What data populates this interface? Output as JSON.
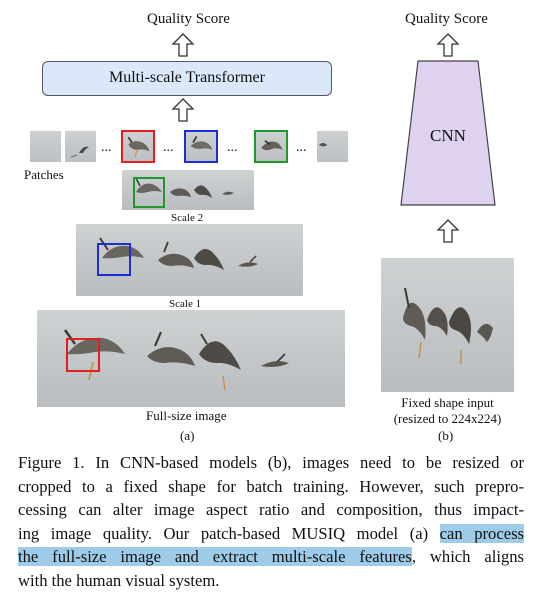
{
  "figure_a": {
    "output_label": "Quality Score",
    "transformer_label": "Multi-scale Transformer",
    "patches_label": "Patches",
    "ellipsis": "...",
    "scale2_label": "Scale 2",
    "scale1_label": "Scale 1",
    "fullsize_label": "Full-size image",
    "panel_label": "(a)"
  },
  "figure_b": {
    "output_label": "Quality Score",
    "cnn_label": "CNN",
    "input_label_line1": "Fixed shape input",
    "input_label_line2": "(resized to 224x224)",
    "panel_label": "(b)"
  },
  "colors": {
    "transformer_fill": "#dbe8fa",
    "cnn_fill": "#ded2f0",
    "box_red": "#e0201c",
    "box_blue": "#1a2fd6",
    "box_green": "#1f9a2a",
    "highlight": "#9ecbe8"
  },
  "caption": {
    "line1": "Figure 1. In CNN-based models (b), images need to be resized or",
    "line2": "cropped to a fixed shape for batch training. However, such prepro-",
    "line3": "cessing can alter image aspect ratio and composition, thus impact-",
    "line4_plain": "ing image quality. Our patch-based MUSIQ model (a) ",
    "line4_highlight": "can process",
    "line5_highlight": "the full-size image and extract multi-scale features",
    "line5_plain": ", which aligns",
    "line6": "with the human visual system."
  }
}
